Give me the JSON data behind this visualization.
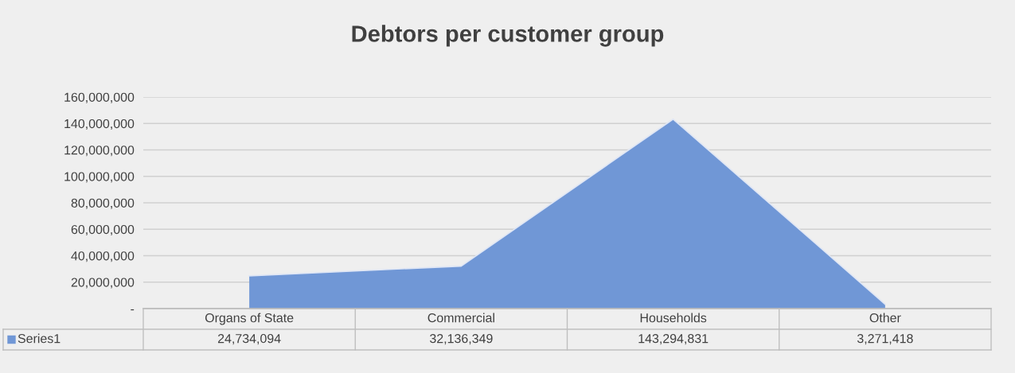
{
  "chart_data": {
    "type": "area",
    "title": "Debtors per customer group",
    "categories": [
      "Organs of State",
      "Commercial",
      "Households",
      "Other"
    ],
    "series": [
      {
        "name": "Series1",
        "color": "#7097d6",
        "values": [
          24734094,
          32136349,
          143294831,
          3271418
        ],
        "value_labels": [
          "24,734,094",
          "32,136,349",
          "143,294,831",
          "3,271,418"
        ]
      }
    ],
    "ylim": [
      0,
      160000000
    ],
    "yticks": [
      {
        "value": 0,
        "label": "-"
      },
      {
        "value": 20000000,
        "label": "20,000,000"
      },
      {
        "value": 40000000,
        "label": "40,000,000"
      },
      {
        "value": 60000000,
        "label": "60,000,000"
      },
      {
        "value": 80000000,
        "label": "80,000,000"
      },
      {
        "value": 100000000,
        "label": "100,000,000"
      },
      {
        "value": 120000000,
        "label": "120,000,000"
      },
      {
        "value": 140000000,
        "label": "140,000,000"
      },
      {
        "value": 160000000,
        "label": "160,000,000"
      }
    ],
    "grid": "y",
    "legend": "bottom"
  }
}
